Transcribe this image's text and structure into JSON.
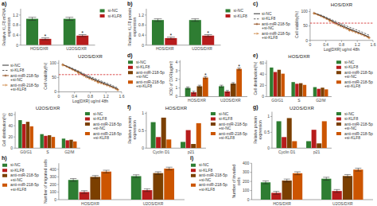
{
  "chart_data": [
    {
      "type": "bar",
      "y_label": "Relative KLF8 mRNA\nexpression",
      "categories": [
        "HOS/DXR",
        "U2OS/DXR"
      ],
      "series": [
        {
          "name": "si-NC",
          "color": "#2e7d32",
          "values": [
            1.05,
            1.05
          ],
          "errors": [
            0.06,
            0.06
          ]
        },
        {
          "name": "si-KLF8",
          "color": "#b71c1c",
          "values": [
            0.25,
            0.38
          ],
          "errors": [
            0.04,
            0.04
          ]
        }
      ],
      "ylim": [
        0,
        1.45
      ],
      "yticks": [
        0,
        0.4,
        0.8,
        1.2
      ],
      "legend": "upper right",
      "annotations": [
        {
          "text": "a)"
        },
        {
          "text": "*",
          "category": "HOS/DXR",
          "series": "si-KLF8"
        },
        {
          "text": "*",
          "category": "U2OS/DXR",
          "series": "si-KLF8"
        }
      ]
    },
    {
      "type": "bar",
      "y_label": "Relative KLF8 protein\nexpression",
      "categories": [
        "HOS/DXR",
        "U2OS/DXR"
      ],
      "series": [
        {
          "name": "si-NC",
          "color": "#2e7d32",
          "values": [
            1.0,
            1.0
          ],
          "errors": [
            0.05,
            0.05
          ]
        },
        {
          "name": "si-KLF8",
          "color": "#b71c1c",
          "values": [
            0.28,
            0.38
          ],
          "errors": [
            0.04,
            0.04
          ]
        }
      ],
      "ylim": [
        0,
        1.45
      ],
      "yticks": [
        0,
        0.4,
        0.8,
        1.2
      ],
      "legend": "upper right",
      "annotations": [
        {
          "text": "b)"
        },
        {
          "text": "*",
          "category": "HOS/DXR",
          "series": "si-KLF8"
        },
        {
          "text": "*",
          "category": "U2OS/DXR",
          "series": "si-KLF8"
        }
      ]
    },
    {
      "type": "line",
      "title": "HOS/DXR",
      "x_label": "Log[DXR] ug/ml 48h",
      "y_label": "Cell viability(%)",
      "x": [
        0.1,
        0.3,
        0.5,
        0.7,
        1.0,
        1.3,
        1.5
      ],
      "series": [
        {
          "name": "si-NC",
          "color": "#1a1a1a",
          "line_style": "solid",
          "values": [
            95,
            85,
            72,
            58,
            40,
            24,
            12
          ]
        },
        {
          "name": "si-KLF8",
          "color": "#555555",
          "line_style": "dashed",
          "values": [
            95,
            87,
            75,
            63,
            46,
            30,
            18
          ]
        },
        {
          "name": "anti-miR-218-5p+si-NC",
          "color": "#8B4513",
          "line_style": "solid",
          "marker": "plus",
          "values": [
            95,
            83,
            70,
            55,
            37,
            22,
            10
          ]
        },
        {
          "name": "anti-miR-218-5p+si-KLF8",
          "color": "#CD853F",
          "line_style": "dashed",
          "marker": "plus",
          "values": [
            93,
            81,
            67,
            52,
            34,
            19,
            8
          ]
        }
      ],
      "xlim": [
        0,
        1.6
      ],
      "xticks": [
        0,
        0.4,
        0.8,
        1.2,
        1.6
      ],
      "ylim": [
        0,
        110
      ],
      "yticks": [
        0,
        50,
        100
      ],
      "legend": "lower left",
      "annotations": [
        {
          "text": "c)"
        },
        {
          "y": 60,
          "color": "#cc0000",
          "line_style": "dashed"
        }
      ]
    },
    {
      "type": "line",
      "title": "U2OS/DXR",
      "x_label": "Log[DXR] ug/ml 48h",
      "y_label": "Cell viability(%)",
      "x": [
        0.1,
        0.3,
        0.5,
        0.7,
        1.0,
        1.3,
        1.5
      ],
      "series": [
        {
          "name": "si-NC",
          "color": "#1a1a1a",
          "line_style": "solid",
          "values": [
            95,
            83,
            70,
            55,
            38,
            22,
            10
          ]
        },
        {
          "name": "si-KLF8",
          "color": "#555555",
          "line_style": "dashed",
          "values": [
            95,
            85,
            73,
            59,
            42,
            26,
            14
          ]
        },
        {
          "name": "anti-miR-218-5p+si-NC",
          "color": "#8B4513",
          "line_style": "solid",
          "marker": "plus",
          "values": [
            95,
            81,
            68,
            52,
            35,
            20,
            8
          ]
        },
        {
          "name": "anti-miR-218-5p+si-KLF8",
          "color": "#CD853F",
          "line_style": "dashed",
          "marker": "plus",
          "values": [
            93,
            79,
            65,
            49,
            32,
            17,
            6
          ]
        }
      ],
      "xlim": [
        0,
        1.6
      ],
      "xticks": [
        0,
        0.4,
        0.8,
        1.2,
        1.6
      ],
      "ylim": [
        0,
        110
      ],
      "yticks": [
        0,
        50,
        100
      ],
      "legend": "lower left",
      "annotations": [
        {
          "y": 60,
          "color": "#cc0000",
          "line_style": "dashed"
        }
      ]
    },
    {
      "type": "bar",
      "y_label": "IC50 of DXR(ug/ml)",
      "categories": [
        "HOS/DXR",
        "U2OS/DXR"
      ],
      "series": [
        {
          "name": "si-NC",
          "color": "#2e7d32",
          "values": [
            1.0,
            1.2
          ],
          "errors": [
            0.12,
            0.12
          ]
        },
        {
          "name": "si-KLF8",
          "color": "#b71c1c",
          "values": [
            0.5,
            0.6
          ],
          "errors": [
            0.12,
            0.12
          ]
        },
        {
          "name": "anti-miR-218-5p+si-NC",
          "color": "#7B3F00",
          "values": [
            1.2,
            1.5
          ],
          "errors": [
            0.12,
            0.12
          ]
        },
        {
          "name": "anti-miR-218-5p+si-KLF8",
          "color": "#CC5500",
          "values": [
            2.2,
            3.2
          ],
          "errors": [
            0.12,
            0.12
          ]
        }
      ],
      "ylim": [
        0,
        4.2
      ],
      "yticks": [
        0,
        1,
        2,
        3,
        4
      ],
      "legend": "upper left",
      "annotations": [
        {
          "text": "d)"
        },
        {
          "text": "*",
          "category": "HOS/DXR",
          "series": "anti-miR-218-5p+si-KLF8"
        },
        {
          "text": "*",
          "category": "U2OS/DXR",
          "series": "anti-miR-218-5p+si-KLF8"
        }
      ]
    },
    {
      "type": "bar",
      "title": "HOS/DXR",
      "y_label": "Cell distribution(%)",
      "categories": [
        "G0/G1",
        "S",
        "G2/M"
      ],
      "series": [
        {
          "name": "si-NC",
          "color": "#2e7d32",
          "values": [
            52,
            26,
            17
          ]
        },
        {
          "name": "si-KLF8",
          "color": "#b71c1c",
          "values": [
            44,
            23,
            14
          ]
        },
        {
          "name": "anti-miR-218-5p+si-NC",
          "color": "#7B3F00",
          "values": [
            48,
            24,
            16
          ]
        },
        {
          "name": "anti-miR-218-5p+si-KLF8",
          "color": "#CC5500",
          "values": [
            41,
            21,
            13
          ]
        }
      ],
      "ylim": [
        0,
        65
      ],
      "yticks": [
        0,
        20,
        40,
        60
      ],
      "legend": "upper right",
      "annotations": [
        {
          "text": "e)"
        }
      ]
    },
    {
      "type": "bar",
      "title": "U2OS/DXR",
      "y_label": "Cell distribution(%)",
      "categories": [
        "G0/G1",
        "S",
        "G2/M"
      ],
      "series": [
        {
          "name": "si-NC",
          "color": "#2e7d32",
          "values": [
            50,
            25,
            17
          ]
        },
        {
          "name": "si-KLF8",
          "color": "#b71c1c",
          "values": [
            43,
            22,
            14
          ]
        },
        {
          "name": "anti-miR-218-5p+si-NC",
          "color": "#7B3F00",
          "values": [
            47,
            23,
            15
          ]
        },
        {
          "name": "anti-miR-218-5p+si-KLF8",
          "color": "#CC5500",
          "values": [
            39,
            20,
            12
          ]
        }
      ],
      "ylim": [
        0,
        65
      ],
      "yticks": [
        0,
        20,
        40,
        60
      ],
      "legend": "upper right"
    },
    {
      "type": "bar",
      "title": "HOS/DXR",
      "y_label": "Relative protein\nexpression",
      "categories": [
        "Cyclin D1",
        "p21"
      ],
      "series": [
        {
          "name": "si-NC",
          "color": "#2e7d32",
          "values": [
            0.75,
            0.18
          ]
        },
        {
          "name": "si-KLF8",
          "color": "#b71c1c",
          "values": [
            0.32,
            0.52
          ]
        },
        {
          "name": "anti-miR-218-5p+si-NC",
          "color": "#7B3F00",
          "values": [
            0.88,
            0.12
          ]
        },
        {
          "name": "anti-miR-218-5p+si-KLF8",
          "color": "#CC5500",
          "values": [
            0.25,
            0.72
          ]
        }
      ],
      "ylim": [
        0,
        1.05
      ],
      "yticks": [
        0,
        0.5,
        1
      ],
      "legend": "upper right",
      "annotations": [
        {
          "text": "f)"
        }
      ]
    },
    {
      "type": "bar",
      "title": "U2OS/DXR",
      "y_label": "Relative protein\nexpression",
      "categories": [
        "Cyclin D1",
        "p21"
      ],
      "series": [
        {
          "name": "si-NC",
          "color": "#2e7d32",
          "values": [
            0.85,
            0.22
          ]
        },
        {
          "name": "si-KLF8",
          "color": "#b71c1c",
          "values": [
            0.35,
            0.58
          ]
        },
        {
          "name": "anti-miR-218-5p+si-NC",
          "color": "#7B3F00",
          "values": [
            0.95,
            0.15
          ]
        },
        {
          "name": "anti-miR-218-5p+si-KLF8",
          "color": "#CC5500",
          "values": [
            0.22,
            0.85
          ]
        }
      ],
      "ylim": [
        0,
        1.15
      ],
      "yticks": [
        0,
        0.5,
        1
      ],
      "legend": "upper right",
      "annotations": [
        {
          "text": "g)"
        }
      ]
    },
    {
      "type": "bar",
      "y_label": "Number of migrated cells",
      "categories": [
        "HOS/DXR",
        "U2OS/DXR"
      ],
      "series": [
        {
          "name": "si-NC",
          "color": "#2e7d32",
          "values": [
            260,
            310
          ],
          "errors": [
            18,
            18
          ]
        },
        {
          "name": "si-KLF8",
          "color": "#b71c1c",
          "values": [
            100,
            125
          ],
          "errors": [
            18,
            18
          ]
        },
        {
          "name": "anti-miR-218-5p+si-NC",
          "color": "#7B3F00",
          "values": [
            300,
            350
          ],
          "errors": [
            18,
            18
          ]
        },
        {
          "name": "anti-miR-218-5p+si-KLF8",
          "color": "#CC5500",
          "values": [
            370,
            410
          ],
          "errors": [
            18,
            18
          ]
        }
      ],
      "ylim": [
        0,
        480
      ],
      "yticks": [
        0,
        100,
        200,
        300,
        400
      ],
      "legend": "upper left",
      "annotations": [
        {
          "text": "h)"
        }
      ]
    },
    {
      "type": "bar",
      "y_label": "Number of invaded\ncells",
      "categories": [
        "HOS/DXR",
        "U2OS/DXR"
      ],
      "series": [
        {
          "name": "si-NC",
          "color": "#2e7d32",
          "values": [
            190,
            230
          ],
          "errors": [
            16,
            16
          ]
        },
        {
          "name": "si-KLF8",
          "color": "#b71c1c",
          "values": [
            75,
            95
          ],
          "errors": [
            16,
            16
          ]
        },
        {
          "name": "anti-miR-218-5p+si-NC",
          "color": "#7B3F00",
          "values": [
            210,
            260
          ],
          "errors": [
            16,
            16
          ]
        },
        {
          "name": "anti-miR-218-5p+si-KLF8",
          "color": "#CC5500",
          "values": [
            290,
            330
          ],
          "errors": [
            16,
            16
          ]
        }
      ],
      "ylim": [
        0,
        400
      ],
      "yticks": [
        0,
        100,
        200,
        300,
        400
      ],
      "legend": "upper left",
      "annotations": [
        {
          "text": "i)"
        }
      ]
    }
  ]
}
